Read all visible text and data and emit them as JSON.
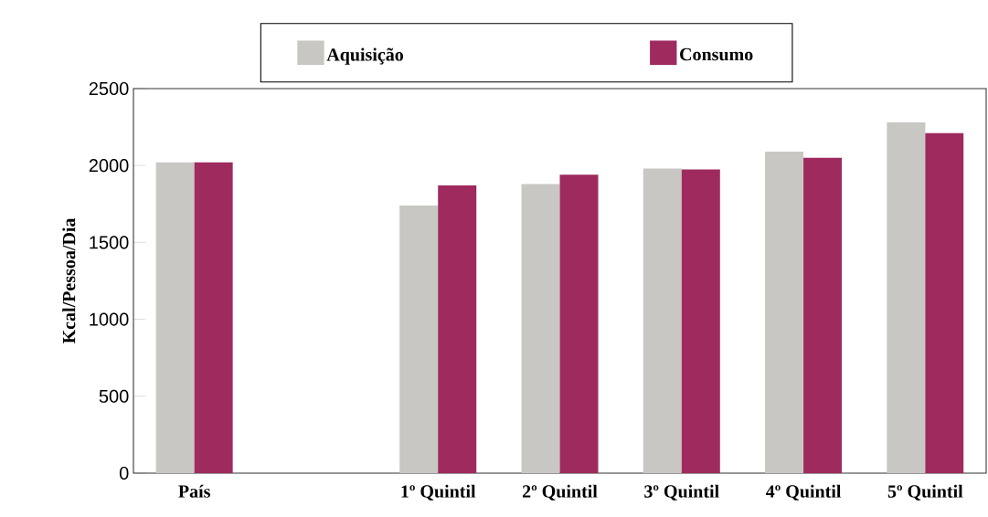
{
  "chart_data": {
    "type": "bar",
    "ylabel": "Kcal/Pessoa/Dia",
    "categories": [
      "País",
      null,
      "1º Quintil",
      "2º Quintil",
      "3º Quintil",
      "4º Quintil",
      "5º Quintil"
    ],
    "series": [
      {
        "name": "Aquisição",
        "color": "#c8c7c3",
        "values": [
          2020,
          null,
          1740,
          1880,
          1980,
          2090,
          2280
        ]
      },
      {
        "name": "Consumo",
        "color": "#9e2a5e",
        "values": [
          2020,
          null,
          1870,
          1940,
          1975,
          2050,
          2210
        ]
      }
    ],
    "ylim": [
      0,
      2500
    ],
    "yticks": [
      0,
      500,
      1000,
      1500,
      2000,
      2500
    ],
    "grid": false,
    "legend": "top"
  }
}
